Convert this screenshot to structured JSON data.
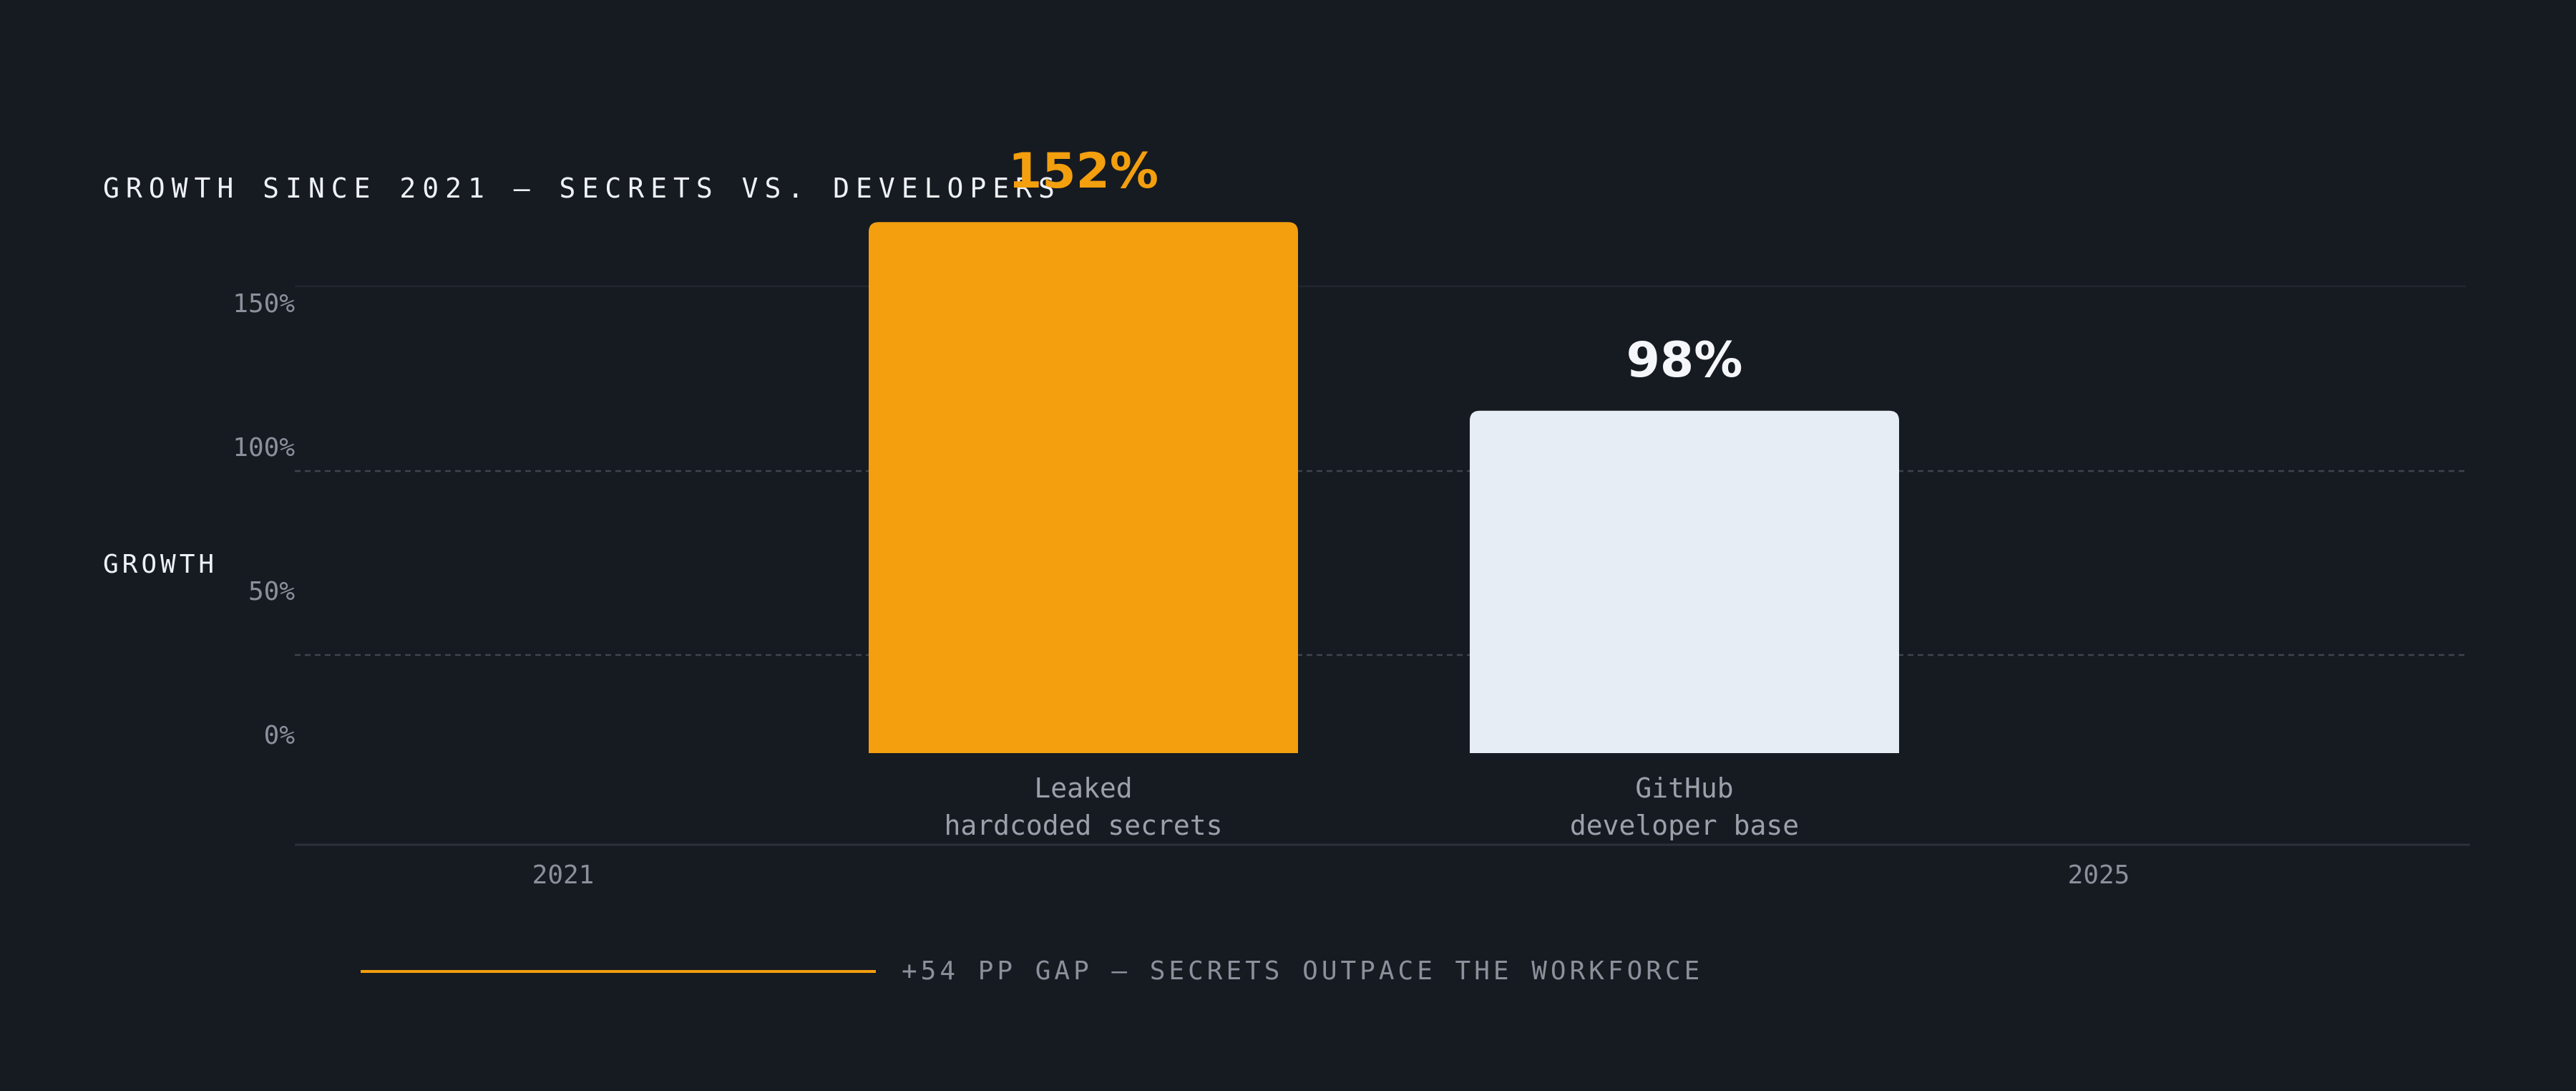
{
  "chart_data": {
    "type": "bar",
    "title": "GROWTH SINCE 2021 — SECRETS VS. DEVELOPERS",
    "ylabel": "GROWTH",
    "xlabel": "",
    "ylim": [
      0,
      150
    ],
    "y_ticks": [
      "0%",
      "50%",
      "100%",
      "150%"
    ],
    "x_ticks": [
      "2021",
      "2025"
    ],
    "categories": [
      [
        "Leaked",
        "hardcoded secrets"
      ],
      [
        "GitHub",
        "developer base"
      ]
    ],
    "values": [
      152,
      98
    ],
    "value_labels": [
      "152%",
      "98%"
    ],
    "colors": [
      "#f39f0e",
      "#e6edf5"
    ],
    "label_colors": [
      "#f39f0e",
      "#f4f6fa"
    ],
    "grid": "dashed",
    "annotation": {
      "text": "+54 PP GAP — SECRETS OUTPACE THE WORKFORCE",
      "line_color": "#f39f0e"
    }
  }
}
